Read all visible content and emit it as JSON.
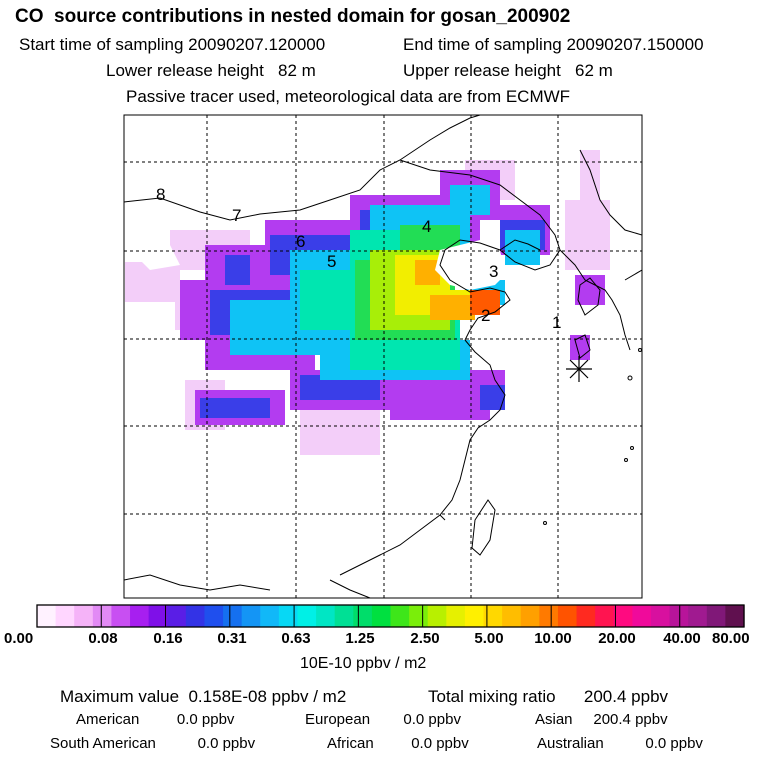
{
  "title": "CO  source contributions in nested domain for gosan_200902",
  "header": {
    "start_time": "Start time of sampling 20090207.120000",
    "end_time": "End time of sampling 20090207.150000",
    "lower_release": "Lower release height   82 m",
    "upper_release": "Upper release height   62 m",
    "tracer_note": "Passive tracer used, meteorological data are from ECMWF"
  },
  "map": {
    "receptor_icon": "asterisk-receptor-icon",
    "site_labels": [
      "1",
      "2",
      "3",
      "4",
      "5",
      "6",
      "7",
      "8"
    ]
  },
  "colorbar": {
    "colors": [
      "#fff2ff",
      "#ffd6ff",
      "#f5b3f8",
      "#e28af5",
      "#c84ff2",
      "#a71ff0",
      "#7f10e8",
      "#5a1ee6",
      "#3333e6",
      "#1f4fee",
      "#1570f0",
      "#1495f5",
      "#11b8f8",
      "#07d8f5",
      "#00f0e6",
      "#00e6c4",
      "#00e095",
      "#00dd6a",
      "#00e040",
      "#3ee61a",
      "#7aee0a",
      "#b8f000",
      "#e6f000",
      "#fff000",
      "#ffd800",
      "#ffbd00",
      "#ffa000",
      "#ff7a00",
      "#ff5300",
      "#ff2a20",
      "#ff1450",
      "#ff0a80",
      "#f00a9b",
      "#d8109f",
      "#b8149a",
      "#a01a90",
      "#801878",
      "#60104f"
    ],
    "tick_labels": [
      "0.00",
      "0.08",
      "0.16",
      "0.31",
      "0.63",
      "1.25",
      "2.50",
      "5.00",
      "10.00",
      "20.00",
      "40.00",
      "80.00"
    ],
    "units": "10E-10 ppbv / m2"
  },
  "stats": {
    "max_value": "Maximum value  0.158E-08 ppbv / m2",
    "total_mixing": "Total mixing ratio      200.4 ppbv",
    "american": "American         0.0 ppbv",
    "european": "European        0.0 ppbv",
    "asian": "Asian     200.4 ppbv",
    "south_american": "South American          0.0 ppbv",
    "african": "African         0.0 ppbv",
    "australian": "Australian          0.0 ppbv"
  }
}
